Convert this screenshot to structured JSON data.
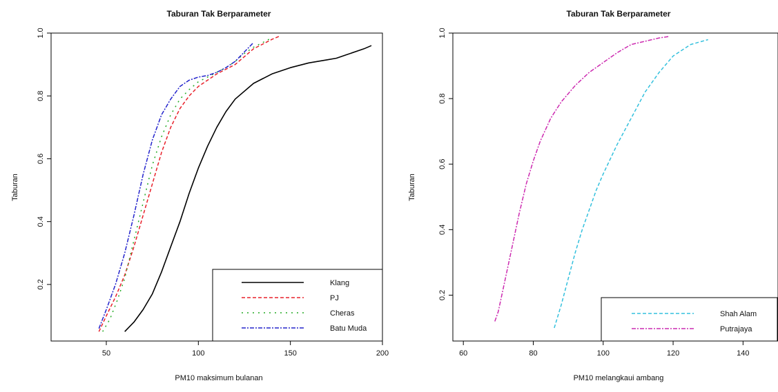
{
  "chart_data": [
    {
      "type": "line",
      "title": "Taburan Tak Berparameter",
      "xlabel": "PM10 maksimum bulanan",
      "ylabel": "Taburan",
      "xlim": [
        20,
        200
      ],
      "ylim": [
        0.02,
        1.0
      ],
      "xticks": [
        50,
        100,
        150,
        200
      ],
      "yticks": [
        0.2,
        0.4,
        0.6,
        0.8,
        1.0
      ],
      "ytick_labels": [
        "0.2",
        "0.4",
        "0.6",
        "0.8",
        "1.0"
      ],
      "grid": false,
      "legend_position": "bottom-right",
      "series": [
        {
          "name": "Klang",
          "color": "#000000",
          "dash": "solid",
          "x": [
            60,
            65,
            70,
            75,
            80,
            85,
            90,
            95,
            100,
            105,
            110,
            115,
            120,
            130,
            140,
            150,
            160,
            170,
            175,
            180,
            190,
            194
          ],
          "y": [
            0.05,
            0.08,
            0.12,
            0.17,
            0.24,
            0.32,
            0.4,
            0.49,
            0.57,
            0.64,
            0.7,
            0.75,
            0.79,
            0.84,
            0.87,
            0.89,
            0.905,
            0.915,
            0.92,
            0.93,
            0.95,
            0.96
          ]
        },
        {
          "name": "PJ",
          "color": "#e8202a",
          "dash": "dashed",
          "x": [
            46,
            50,
            55,
            60,
            65,
            70,
            75,
            80,
            85,
            90,
            95,
            100,
            105,
            110,
            115,
            120,
            125,
            130,
            135,
            140,
            144
          ],
          "y": [
            0.05,
            0.1,
            0.16,
            0.23,
            0.32,
            0.42,
            0.52,
            0.62,
            0.7,
            0.76,
            0.8,
            0.83,
            0.85,
            0.87,
            0.885,
            0.9,
            0.925,
            0.95,
            0.965,
            0.98,
            0.99
          ]
        },
        {
          "name": "Cheras",
          "color": "#22aa22",
          "dash": "dotted",
          "x": [
            48,
            52,
            56,
            60,
            65,
            70,
            75,
            80,
            85,
            90,
            95,
            100,
            105,
            110,
            115,
            120,
            125,
            130,
            135,
            140
          ],
          "y": [
            0.05,
            0.09,
            0.15,
            0.22,
            0.34,
            0.46,
            0.58,
            0.67,
            0.74,
            0.79,
            0.82,
            0.845,
            0.86,
            0.875,
            0.89,
            0.91,
            0.935,
            0.955,
            0.97,
            0.985
          ]
        },
        {
          "name": "Batu Muda",
          "color": "#2222cc",
          "dash": "dashdot",
          "x": [
            46,
            50,
            55,
            60,
            65,
            70,
            75,
            80,
            85,
            90,
            95,
            100,
            105,
            110,
            115,
            120,
            125,
            130
          ],
          "y": [
            0.06,
            0.12,
            0.2,
            0.3,
            0.42,
            0.55,
            0.66,
            0.74,
            0.79,
            0.83,
            0.85,
            0.86,
            0.865,
            0.875,
            0.89,
            0.91,
            0.94,
            0.97
          ]
        }
      ]
    },
    {
      "type": "line",
      "title": "Taburan Tak Berparameter",
      "xlabel": "PM10 melangkaui ambang",
      "ylabel": "Taburan",
      "xlim": [
        57,
        150
      ],
      "ylim": [
        0.06,
        1.0
      ],
      "xticks": [
        60,
        80,
        100,
        120,
        140
      ],
      "yticks": [
        0.2,
        0.4,
        0.6,
        0.8,
        1.0
      ],
      "ytick_labels": [
        "0.2",
        "0.4",
        "0.6",
        "0.8",
        "1.0"
      ],
      "grid": false,
      "legend_position": "bottom-right",
      "series": [
        {
          "name": "Shah Alam",
          "color": "#33c0dd",
          "dash": "dashed",
          "x": [
            86,
            88,
            90,
            92,
            94,
            96,
            98,
            100,
            104,
            108,
            112,
            116,
            120,
            125,
            130
          ],
          "y": [
            0.1,
            0.17,
            0.25,
            0.33,
            0.4,
            0.46,
            0.52,
            0.57,
            0.66,
            0.74,
            0.82,
            0.88,
            0.93,
            0.965,
            0.98
          ]
        },
        {
          "name": "Putrajaya",
          "color": "#cc2ab0",
          "dash": "dashdot",
          "x": [
            69,
            70,
            72,
            74,
            76,
            78,
            80,
            82,
            85,
            88,
            92,
            96,
            100,
            104,
            108,
            112,
            116,
            119
          ],
          "y": [
            0.12,
            0.15,
            0.25,
            0.35,
            0.45,
            0.54,
            0.61,
            0.67,
            0.74,
            0.79,
            0.84,
            0.88,
            0.91,
            0.94,
            0.965,
            0.975,
            0.985,
            0.99
          ]
        }
      ]
    }
  ]
}
